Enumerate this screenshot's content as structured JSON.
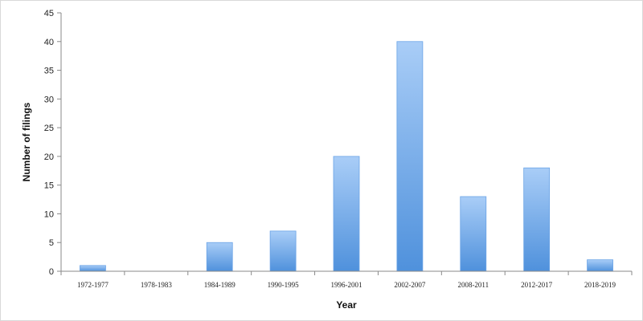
{
  "chart_data": {
    "type": "bar",
    "categories": [
      "1972-1977",
      "1978-1983",
      "1984-1989",
      "1990-1995",
      "1996-2001",
      "2002-2007",
      "2008-2011",
      "2012-2017",
      "2018-2019"
    ],
    "values": [
      1,
      0,
      5,
      7,
      20,
      40,
      13,
      18,
      2
    ],
    "title": "",
    "xlabel": "Year",
    "ylabel": "Number of filings",
    "ylim": [
      0,
      45
    ],
    "yticks": [
      0,
      5,
      10,
      15,
      20,
      25,
      30,
      35,
      40,
      45
    ],
    "grid": false,
    "legend": "none",
    "colors": {
      "bar_top": "#a9cdf7",
      "bar_bottom": "#4f91dc",
      "bar_edge": "#6aa3e6",
      "axis": "#8a8a8a"
    }
  }
}
